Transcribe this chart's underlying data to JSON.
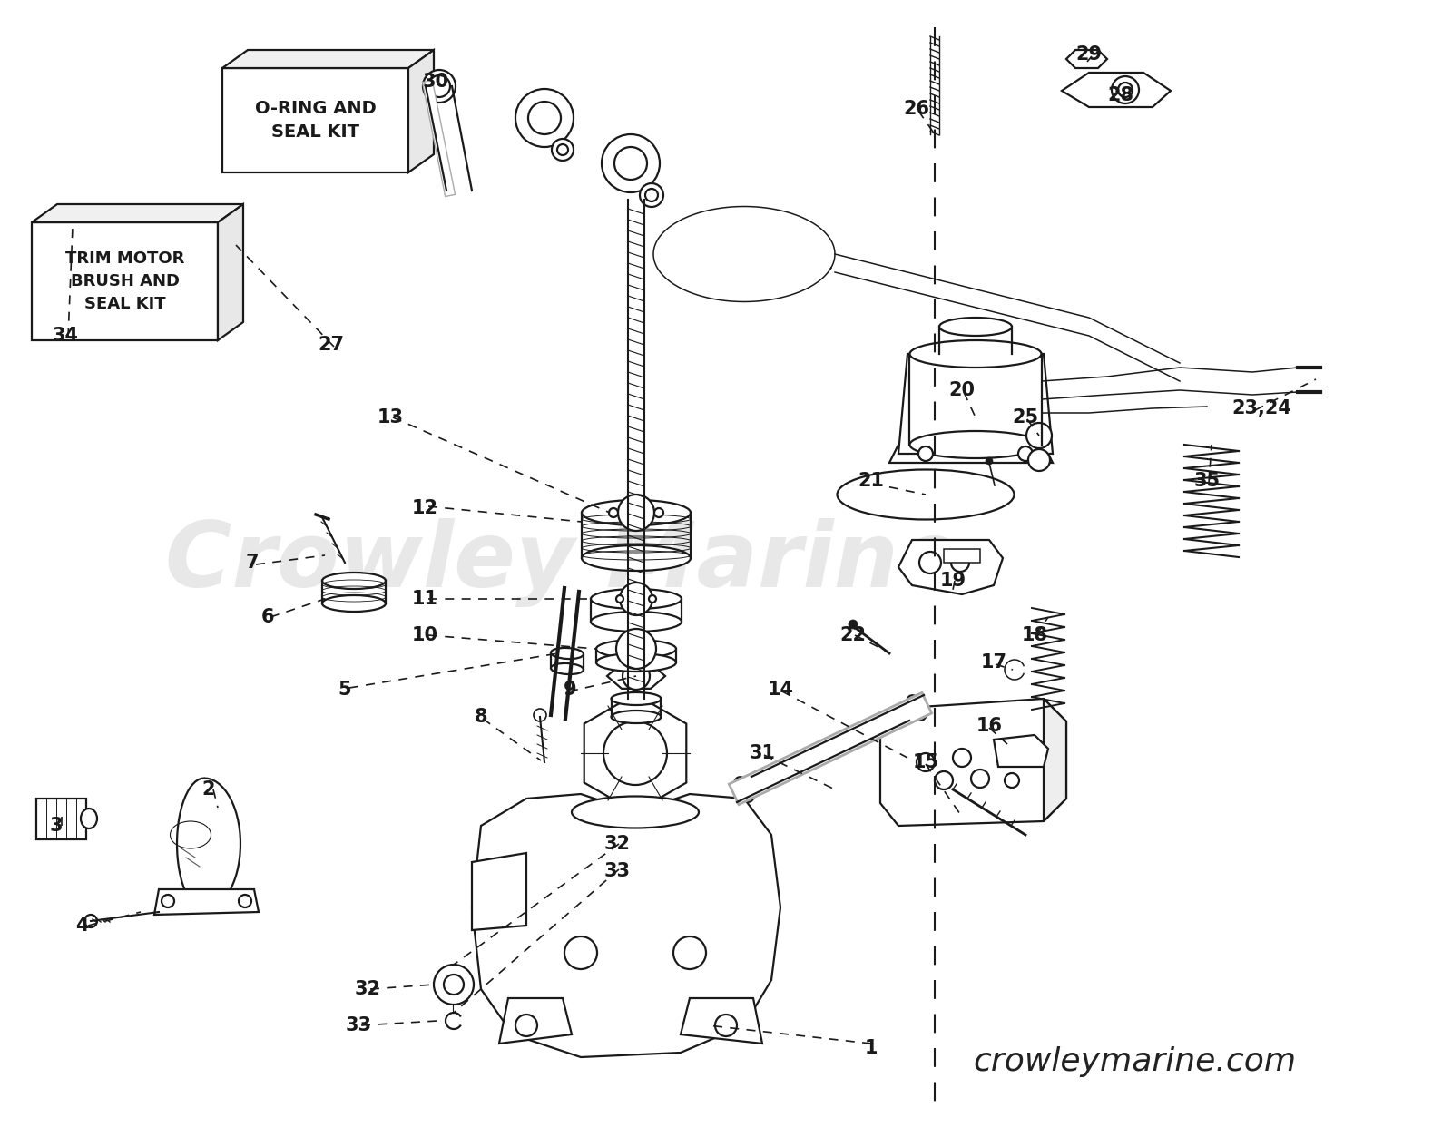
{
  "background_color": "#ffffff",
  "line_color": "#1a1a1a",
  "watermark_color": "#cccccc",
  "watermark_text": "Crowley Marine",
  "website_text": "crowleymarine.com",
  "kit_box1_text": "O-RING AND\nSEAL KIT",
  "kit_box2_text": "TRIM MOTOR\nBRUSH AND\nSEAL KIT",
  "figsize": [
    16.0,
    12.64
  ],
  "dpi": 100,
  "labels": [
    [
      "1",
      960,
      1155
    ],
    [
      "2",
      230,
      870
    ],
    [
      "3",
      62,
      910
    ],
    [
      "4",
      90,
      1020
    ],
    [
      "5",
      380,
      760
    ],
    [
      "6",
      295,
      680
    ],
    [
      "7",
      278,
      620
    ],
    [
      "8",
      530,
      790
    ],
    [
      "9",
      628,
      760
    ],
    [
      "10",
      468,
      700
    ],
    [
      "11",
      468,
      660
    ],
    [
      "12",
      468,
      560
    ],
    [
      "13",
      430,
      460
    ],
    [
      "14",
      860,
      760
    ],
    [
      "15",
      1020,
      840
    ],
    [
      "16",
      1090,
      800
    ],
    [
      "17",
      1095,
      730
    ],
    [
      "18",
      1140,
      700
    ],
    [
      "19",
      1050,
      640
    ],
    [
      "20",
      1060,
      430
    ],
    [
      "21",
      960,
      530
    ],
    [
      "22",
      940,
      700
    ],
    [
      "23,24",
      1390,
      450
    ],
    [
      "25",
      1130,
      460
    ],
    [
      "26",
      1010,
      120
    ],
    [
      "27",
      365,
      380
    ],
    [
      "28",
      1235,
      105
    ],
    [
      "29",
      1200,
      60
    ],
    [
      "30",
      480,
      90
    ],
    [
      "31",
      840,
      830
    ],
    [
      "32",
      680,
      930
    ],
    [
      "33",
      680,
      960
    ],
    [
      "32",
      405,
      1090
    ],
    [
      "33",
      395,
      1130
    ],
    [
      "34",
      72,
      370
    ],
    [
      "35",
      1330,
      530
    ]
  ]
}
